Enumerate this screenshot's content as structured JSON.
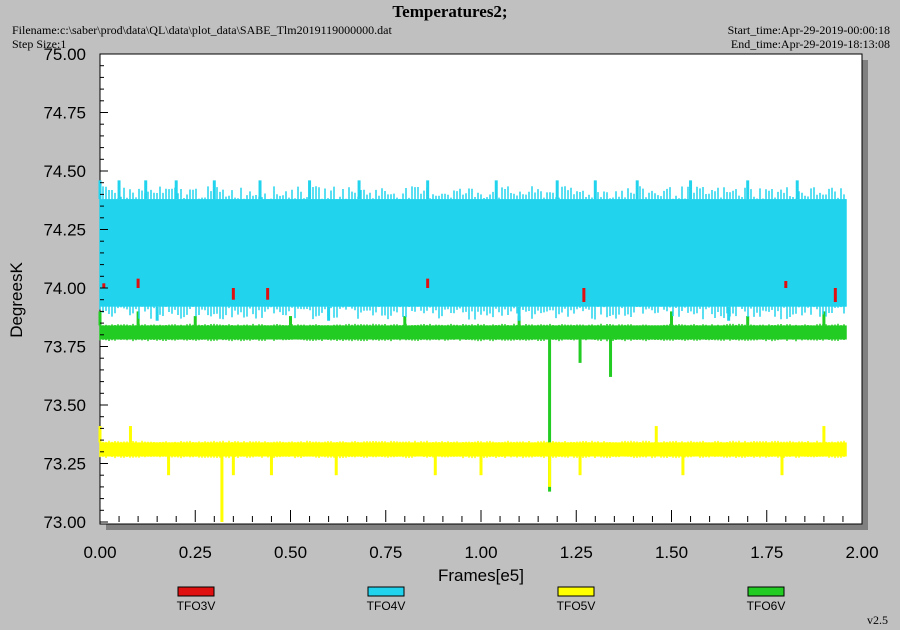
{
  "header": {
    "title": "Temperatures2;",
    "filename": "Filename:c:\\saber\\prod\\data\\QL\\data\\plot_data\\SABE_Tlm2019119000000.dat",
    "step_size": "Step Size:1",
    "start_time": "Start_time:Apr-29-2019-00:00:18",
    "end_time": "End_time:Apr-29-2019-18:13:08"
  },
  "version": "v2.5",
  "chart_data": {
    "type": "line",
    "title": "Temperatures2;",
    "xlabel": "Frames[e5]",
    "ylabel": "DegreesK",
    "xlim": [
      0.0,
      2.0
    ],
    "ylim": [
      73.0,
      75.0
    ],
    "x_ticks": [
      "0.00",
      "0.25",
      "0.50",
      "0.75",
      "1.00",
      "1.25",
      "1.50",
      "1.75",
      "2.00"
    ],
    "y_ticks": [
      "75.00",
      "74.75",
      "74.50",
      "74.25",
      "74.00",
      "73.75",
      "73.50",
      "73.25",
      "73.00"
    ],
    "grid": false,
    "legend_position": "bottom",
    "x_range_data": [
      0.0,
      1.96
    ],
    "series": [
      {
        "name": "TFO3V",
        "color": "#e01010",
        "band": [
          74.0,
          74.0
        ],
        "spikes": [
          {
            "x": 0.01,
            "to": 74.02
          },
          {
            "x": 0.1,
            "to": 74.04
          },
          {
            "x": 0.35,
            "to": 73.95
          },
          {
            "x": 0.44,
            "to": 73.95
          },
          {
            "x": 0.86,
            "to": 74.04
          },
          {
            "x": 1.27,
            "to": 73.94
          },
          {
            "x": 1.8,
            "to": 74.03
          },
          {
            "x": 1.93,
            "to": 73.94
          }
        ]
      },
      {
        "name": "TFO4V",
        "color": "#22d3ee",
        "band": [
          73.92,
          74.38
        ],
        "spikes": [
          {
            "x": 0.0,
            "to": 74.46
          },
          {
            "x": 0.05,
            "to": 74.46
          },
          {
            "x": 0.12,
            "to": 74.46
          },
          {
            "x": 0.2,
            "to": 74.46
          },
          {
            "x": 0.3,
            "to": 74.46
          },
          {
            "x": 0.42,
            "to": 74.46
          },
          {
            "x": 0.55,
            "to": 74.46
          },
          {
            "x": 0.68,
            "to": 74.46
          },
          {
            "x": 0.86,
            "to": 74.46
          },
          {
            "x": 1.04,
            "to": 74.46
          },
          {
            "x": 1.2,
            "to": 74.46
          },
          {
            "x": 1.3,
            "to": 74.46
          },
          {
            "x": 1.41,
            "to": 74.46
          },
          {
            "x": 1.55,
            "to": 74.46
          },
          {
            "x": 1.7,
            "to": 74.46
          },
          {
            "x": 1.83,
            "to": 74.46
          },
          {
            "x": 0.15,
            "to": 73.86
          },
          {
            "x": 0.6,
            "to": 73.86
          },
          {
            "x": 1.1,
            "to": 73.86
          },
          {
            "x": 1.65,
            "to": 73.86
          }
        ]
      },
      {
        "name": "TFO5V",
        "color": "#ffff00",
        "band": [
          73.28,
          73.34
        ],
        "spikes": [
          {
            "x": 0.32,
            "to": 73.0
          },
          {
            "x": 1.18,
            "to": 73.15
          },
          {
            "x": 0.0,
            "to": 73.41
          },
          {
            "x": 0.08,
            "to": 73.41
          },
          {
            "x": 1.46,
            "to": 73.41
          },
          {
            "x": 1.9,
            "to": 73.41
          },
          {
            "x": 0.18,
            "to": 73.2
          },
          {
            "x": 0.35,
            "to": 73.2
          },
          {
            "x": 0.45,
            "to": 73.2
          },
          {
            "x": 0.62,
            "to": 73.2
          },
          {
            "x": 0.88,
            "to": 73.2
          },
          {
            "x": 1.0,
            "to": 73.2
          },
          {
            "x": 1.26,
            "to": 73.2
          },
          {
            "x": 1.53,
            "to": 73.2
          },
          {
            "x": 1.79,
            "to": 73.2
          }
        ]
      },
      {
        "name": "TFO6V",
        "color": "#22cc22",
        "band": [
          73.78,
          73.84
        ],
        "spikes": [
          {
            "x": 1.18,
            "to": 73.13
          },
          {
            "x": 1.26,
            "to": 73.68
          },
          {
            "x": 1.34,
            "to": 73.62
          },
          {
            "x": 0.0,
            "to": 73.9
          },
          {
            "x": 0.1,
            "to": 73.9
          },
          {
            "x": 0.25,
            "to": 73.88
          },
          {
            "x": 0.5,
            "to": 73.88
          },
          {
            "x": 0.8,
            "to": 73.88
          },
          {
            "x": 1.1,
            "to": 73.88
          },
          {
            "x": 1.5,
            "to": 73.9
          },
          {
            "x": 1.7,
            "to": 73.88
          },
          {
            "x": 1.9,
            "to": 73.9
          }
        ]
      }
    ]
  }
}
